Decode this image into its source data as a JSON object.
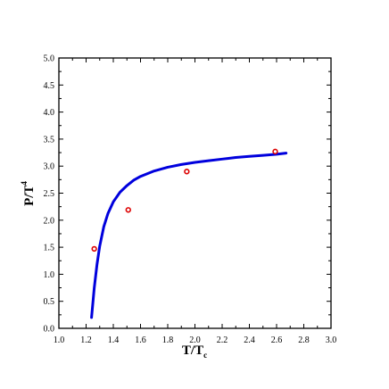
{
  "chart_data": {
    "type": "line",
    "xlabel": {
      "base": "T/T",
      "subscript": "c"
    },
    "ylabel": {
      "base": "P/T",
      "superscript": "4"
    },
    "xlim": [
      1.0,
      3.0
    ],
    "ylim": [
      0.0,
      5.0
    ],
    "xticks": [
      "1.0",
      "1.2",
      "1.4",
      "1.6",
      "1.8",
      "2.0",
      "2.2",
      "2.4",
      "2.6",
      "2.8",
      "3.0"
    ],
    "yticks": [
      "0.0",
      "0.5",
      "1.0",
      "1.5",
      "2.0",
      "2.5",
      "3.0",
      "3.5",
      "4.0",
      "4.5",
      "5.0"
    ],
    "grid": false,
    "series": [
      {
        "kind": "line",
        "color": "#0000dd",
        "points": [
          [
            1.24,
            0.2
          ],
          [
            1.26,
            0.75
          ],
          [
            1.28,
            1.18
          ],
          [
            1.3,
            1.52
          ],
          [
            1.33,
            1.88
          ],
          [
            1.36,
            2.12
          ],
          [
            1.4,
            2.34
          ],
          [
            1.45,
            2.52
          ],
          [
            1.5,
            2.64
          ],
          [
            1.55,
            2.74
          ],
          [
            1.6,
            2.81
          ],
          [
            1.7,
            2.91
          ],
          [
            1.8,
            2.98
          ],
          [
            1.9,
            3.03
          ],
          [
            2.0,
            3.07
          ],
          [
            2.1,
            3.1
          ],
          [
            2.2,
            3.13
          ],
          [
            2.3,
            3.16
          ],
          [
            2.4,
            3.18
          ],
          [
            2.5,
            3.2
          ],
          [
            2.6,
            3.22
          ],
          [
            2.67,
            3.24
          ]
        ]
      },
      {
        "kind": "scatter",
        "color": "#dd0000",
        "points": [
          [
            1.26,
            1.47
          ],
          [
            1.51,
            2.19
          ],
          [
            1.94,
            2.9
          ],
          [
            2.59,
            3.27
          ]
        ]
      }
    ]
  }
}
